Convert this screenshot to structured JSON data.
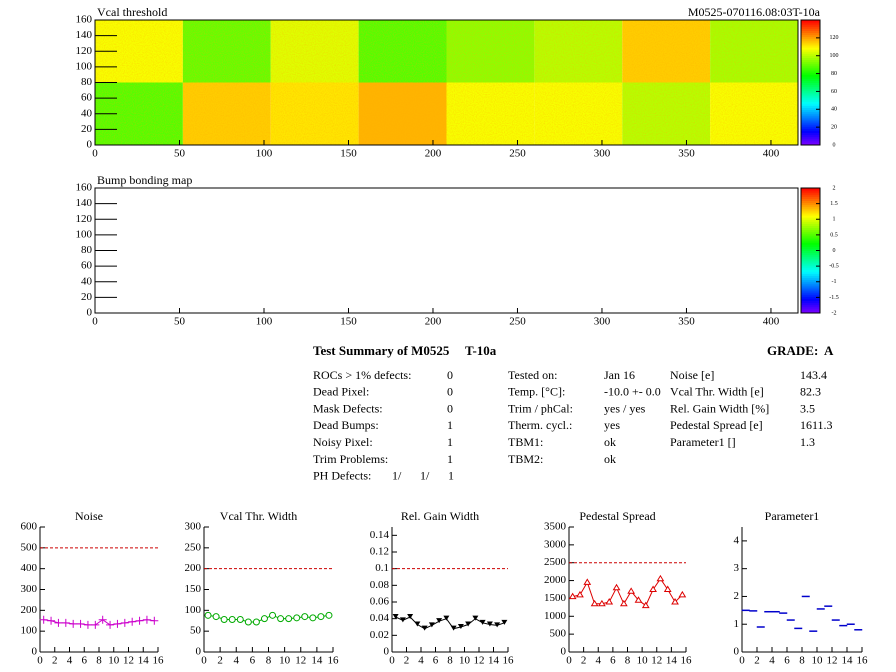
{
  "chart_data": [
    {
      "type": "heatmap",
      "title": "Vcal threshold",
      "subtitle": "M0525-070116.08:03T-10a",
      "xlim": [
        0,
        416
      ],
      "ylim": [
        0,
        160
      ],
      "xticks": [
        0,
        50,
        100,
        150,
        200,
        250,
        300,
        350,
        400
      ],
      "yticks": [
        0,
        20,
        40,
        60,
        80,
        100,
        120,
        140,
        160
      ],
      "xbins": [
        0,
        52,
        104,
        156,
        208,
        260,
        312,
        364,
        416
      ],
      "ybins": [
        0,
        80,
        160
      ],
      "z": [
        [
          88,
          115,
          112,
          118,
          108,
          108,
          100,
          108
        ],
        [
          108,
          90,
          105,
          88,
          95,
          100,
          115,
          98
        ]
      ],
      "zlim": [
        0,
        140
      ],
      "zticks": [
        0,
        20,
        40,
        60,
        80,
        100,
        120
      ]
    },
    {
      "type": "heatmap",
      "title": "Bump bonding map",
      "xlim": [
        0,
        416
      ],
      "ylim": [
        0,
        160
      ],
      "xticks": [
        0,
        50,
        100,
        150,
        200,
        250,
        300,
        350,
        400
      ],
      "yticks": [
        0,
        20,
        40,
        60,
        80,
        100,
        120,
        140,
        160
      ],
      "zlim": [
        -2,
        2
      ],
      "zticks": [
        -2,
        -1.5,
        -1,
        -0.5,
        0,
        0.5,
        1,
        1.5,
        2
      ]
    },
    {
      "type": "line",
      "title": "Noise",
      "color": "#cc00cc",
      "marker": "plus",
      "line": true,
      "x": [
        0.5,
        1.5,
        2.5,
        3.5,
        4.5,
        5.5,
        6.5,
        7.5,
        8.5,
        9.5,
        10.5,
        11.5,
        12.5,
        13.5,
        14.5,
        15.5
      ],
      "values": [
        155,
        150,
        140,
        140,
        135,
        135,
        130,
        130,
        155,
        130,
        135,
        140,
        145,
        150,
        155,
        150
      ],
      "reference_line": 500,
      "reference_color": "#cc0000",
      "xlim": [
        0,
        16
      ],
      "ylim": [
        0,
        600
      ],
      "xticks": [
        0,
        2,
        4,
        6,
        8,
        10,
        12,
        14,
        16
      ],
      "yticks": [
        0,
        100,
        200,
        300,
        400,
        500,
        600
      ]
    },
    {
      "type": "line",
      "title": "Vcal Thr. Width",
      "color": "#00aa00",
      "marker": "circle",
      "line": true,
      "x": [
        0.5,
        1.5,
        2.5,
        3.5,
        4.5,
        5.5,
        6.5,
        7.5,
        8.5,
        9.5,
        10.5,
        11.5,
        12.5,
        13.5,
        14.5,
        15.5
      ],
      "values": [
        88,
        85,
        78,
        78,
        78,
        72,
        72,
        80,
        88,
        80,
        80,
        82,
        85,
        82,
        85,
        88
      ],
      "reference_line": 200,
      "reference_color": "#cc0000",
      "xlim": [
        0,
        16
      ],
      "ylim": [
        0,
        300
      ],
      "xticks": [
        0,
        2,
        4,
        6,
        8,
        10,
        12,
        14,
        16
      ],
      "yticks": [
        0,
        50,
        100,
        150,
        200,
        250,
        300
      ]
    },
    {
      "type": "line",
      "title": "Rel. Gain Width",
      "color": "#000000",
      "marker": "tri_down",
      "line": true,
      "x": [
        0.5,
        1.5,
        2.5,
        3.5,
        4.5,
        5.5,
        6.5,
        7.5,
        8.5,
        9.5,
        10.5,
        11.5,
        12.5,
        13.5,
        14.5,
        15.5
      ],
      "values": [
        0.042,
        0.038,
        0.042,
        0.033,
        0.028,
        0.032,
        0.037,
        0.04,
        0.028,
        0.03,
        0.033,
        0.04,
        0.035,
        0.033,
        0.032,
        0.035
      ],
      "reference_line": 0.1,
      "reference_color": "#cc0000",
      "xlim": [
        0,
        16
      ],
      "ylim": [
        0,
        0.15
      ],
      "xticks": [
        0,
        2,
        4,
        6,
        8,
        10,
        12,
        14,
        16
      ],
      "yticks": [
        0,
        0.02,
        0.04,
        0.06,
        0.08,
        0.1,
        0.12,
        0.14
      ]
    },
    {
      "type": "line",
      "title": "Pedestal Spread",
      "color": "#dd0000",
      "marker": "tri_up",
      "line": true,
      "x": [
        0.5,
        1.5,
        2.5,
        3.5,
        4.5,
        5.5,
        6.5,
        7.5,
        8.5,
        9.5,
        10.5,
        11.5,
        12.5,
        13.5,
        14.5,
        15.5
      ],
      "values": [
        1550,
        1600,
        1950,
        1350,
        1350,
        1400,
        1800,
        1350,
        1700,
        1450,
        1300,
        1750,
        2050,
        1750,
        1400,
        1600
      ],
      "reference_line": 2500,
      "reference_color": "#cc0000",
      "xlim": [
        0,
        16
      ],
      "ylim": [
        0,
        3500
      ],
      "xticks": [
        0,
        2,
        4,
        6,
        8,
        10,
        12,
        14,
        16
      ],
      "yticks": [
        0,
        500,
        1000,
        1500,
        2000,
        2500,
        3000,
        3500
      ]
    },
    {
      "type": "line",
      "title": "Parameter1",
      "color": "#0000cc",
      "marker": "dash",
      "line": false,
      "x": [
        0.5,
        1.5,
        2.5,
        3.5,
        4.5,
        5.5,
        6.5,
        7.5,
        8.5,
        9.5,
        10.5,
        11.5,
        12.5,
        13.5,
        14.5,
        15.5
      ],
      "values": [
        1.5,
        1.48,
        0.9,
        1.45,
        1.45,
        1.4,
        1.15,
        0.85,
        2.0,
        0.75,
        1.55,
        1.65,
        1.15,
        0.95,
        1.0,
        0.8
      ],
      "xlim": [
        0,
        16
      ],
      "ylim": [
        0,
        4.5
      ],
      "xticks": [
        0,
        2,
        4,
        6,
        8,
        10,
        12,
        14,
        16
      ],
      "yticks": [
        0,
        1,
        2,
        3,
        4
      ]
    }
  ],
  "summary": {
    "title": "Test Summary of M0525",
    "tag": "T-10a",
    "grade": "GRADE:  A",
    "defects": [
      [
        "ROCs > 1% defects:",
        "0"
      ],
      [
        "Dead Pixel:",
        "0"
      ],
      [
        "Mask Defects:",
        "0"
      ],
      [
        "Dead Bumps:",
        "1"
      ],
      [
        "Noisy Pixel:",
        "1"
      ],
      [
        "Trim Problems:",
        "1"
      ]
    ],
    "ph_defects": {
      "label": "PH Defects:",
      "values": [
        "1/",
        "1/",
        "1"
      ],
      "colors": [
        "#000000",
        "#dd0000",
        "#0000cc"
      ]
    },
    "conditions": [
      [
        "Tested on:",
        "Jan 16"
      ],
      [
        "Temp. [°C]:",
        "-10.0 +- 0.0"
      ],
      [
        "Trim / phCal:",
        "yes / yes"
      ],
      [
        "Therm. cycl.:",
        "yes"
      ],
      [
        "TBM1:",
        "ok"
      ],
      [
        "TBM2:",
        "ok"
      ]
    ],
    "results": [
      [
        "Noise [e]",
        "143.4"
      ],
      [
        "Vcal Thr. Width [e]",
        "82.3"
      ],
      [
        "Rel. Gain Width [%]",
        "3.5"
      ],
      [
        "Pedestal Spread [e]",
        "1611.3"
      ],
      [
        "Parameter1 []",
        "1.3"
      ]
    ]
  }
}
